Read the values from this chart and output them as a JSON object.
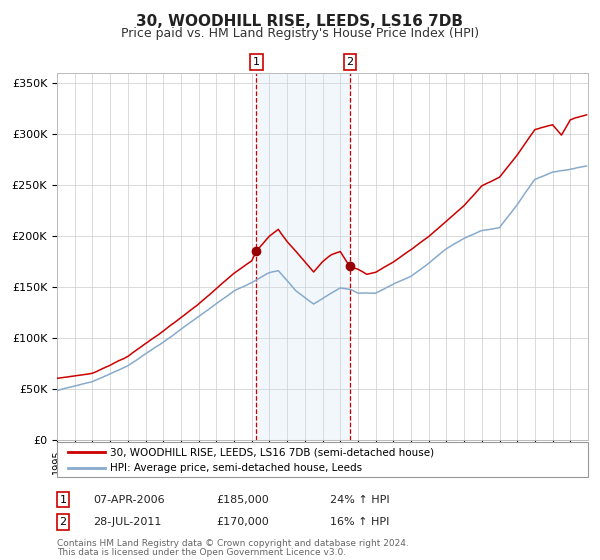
{
  "title": "30, WOODHILL RISE, LEEDS, LS16 7DB",
  "subtitle": "Price paid vs. HM Land Registry's House Price Index (HPI)",
  "title_fontsize": 11,
  "subtitle_fontsize": 9,
  "property_color": "#cc0000",
  "hpi_color": "#88aacc",
  "shading_color": "#cce0f0",
  "dashed_line_color": "#cc0000",
  "marker_color": "#990000",
  "ylim": [
    0,
    360000
  ],
  "yticks": [
    0,
    50000,
    100000,
    150000,
    200000,
    250000,
    300000,
    350000
  ],
  "legend1": "30, WOODHILL RISE, LEEDS, LS16 7DB (semi-detached house)",
  "legend2": "HPI: Average price, semi-detached house, Leeds",
  "sale1_label": "1",
  "sale1_date": "07-APR-2006",
  "sale1_price": "£185,000",
  "sale1_pct": "24% ↑ HPI",
  "sale1_year": 2006.27,
  "sale1_value": 185000,
  "sale2_label": "2",
  "sale2_date": "28-JUL-2011",
  "sale2_price": "£170,000",
  "sale2_pct": "16% ↑ HPI",
  "sale2_year": 2011.56,
  "sale2_value": 170000,
  "footer_line1": "Contains HM Land Registry data © Crown copyright and database right 2024.",
  "footer_line2": "This data is licensed under the Open Government Licence v3.0.",
  "background_color": "#ffffff",
  "grid_color": "#cccccc",
  "hpi_keypoints_years": [
    1995.0,
    1997.0,
    1999.0,
    2001.0,
    2003.0,
    2005.0,
    2007.0,
    2007.5,
    2008.5,
    2009.5,
    2010.5,
    2011.0,
    2011.56,
    2012.0,
    2013.0,
    2014.0,
    2015.0,
    2016.0,
    2017.0,
    2018.0,
    2019.0,
    2020.0,
    2021.0,
    2022.0,
    2023.0,
    2024.0,
    2024.917
  ],
  "hpi_keypoints_vals": [
    48000,
    57000,
    72000,
    95000,
    120000,
    145000,
    163000,
    165000,
    145000,
    132000,
    143000,
    148000,
    146551,
    143000,
    143000,
    152000,
    160000,
    173000,
    187000,
    197000,
    205000,
    208000,
    230000,
    255000,
    262000,
    265000,
    268000
  ],
  "prop_keypoints_years": [
    1995.0,
    1997.0,
    1999.0,
    2001.0,
    2003.0,
    2005.0,
    2006.0,
    2006.27,
    2007.0,
    2007.5,
    2008.0,
    2009.0,
    2009.5,
    2010.0,
    2010.5,
    2011.0,
    2011.56,
    2012.0,
    2012.5,
    2013.0,
    2014.0,
    2015.0,
    2016.0,
    2017.0,
    2018.0,
    2019.0,
    2020.0,
    2021.0,
    2022.0,
    2023.0,
    2023.5,
    2024.0,
    2024.917
  ],
  "prop_keypoints_vals": [
    60000,
    65000,
    82000,
    107000,
    133000,
    163000,
    175000,
    185000,
    200000,
    207000,
    195000,
    175000,
    165000,
    175000,
    182000,
    185000,
    170000,
    168000,
    163000,
    165000,
    175000,
    187000,
    200000,
    215000,
    230000,
    250000,
    258000,
    280000,
    305000,
    310000,
    300000,
    315000,
    320000
  ]
}
